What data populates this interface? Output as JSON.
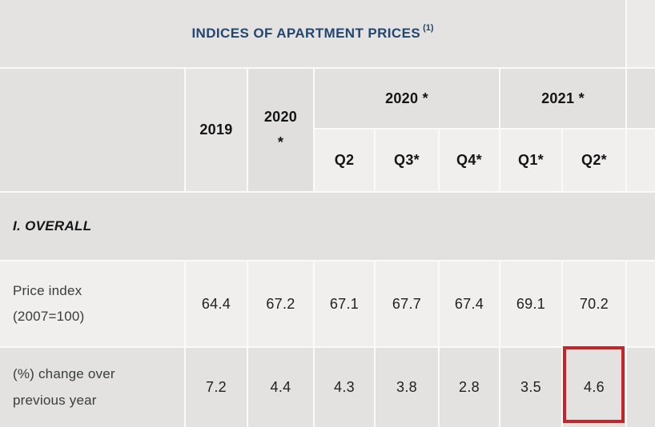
{
  "colors": {
    "title_text": "#23466f",
    "highlight_border": "#c2262b"
  },
  "title": {
    "text": "INDICES OF APARTMENT PRICES",
    "superscript": "(1)"
  },
  "header": {
    "year_2019": "2019",
    "year_2020_line1": "2020",
    "year_2020_line2": "*",
    "group_2020": "2020 *",
    "group_2021": "2021 *",
    "quarters": [
      "Q2",
      "Q3*",
      "Q4*",
      "Q1*",
      "Q2*"
    ]
  },
  "section_label": "I. OVERALL",
  "rows": [
    {
      "label_line1": "Price index",
      "label_line2": "(2007=100)",
      "values": [
        "64.4",
        "67.2",
        "67.1",
        "67.7",
        "67.4",
        "69.1",
        "70.2"
      ]
    },
    {
      "label_line1": "(%) change over",
      "label_line2": "previous year",
      "values": [
        "7.2",
        "4.4",
        "4.3",
        "3.8",
        "2.8",
        "3.5",
        "4.6"
      ]
    }
  ],
  "highlight": {
    "row_label": "(%) change over previous year",
    "column": "Q2*"
  }
}
